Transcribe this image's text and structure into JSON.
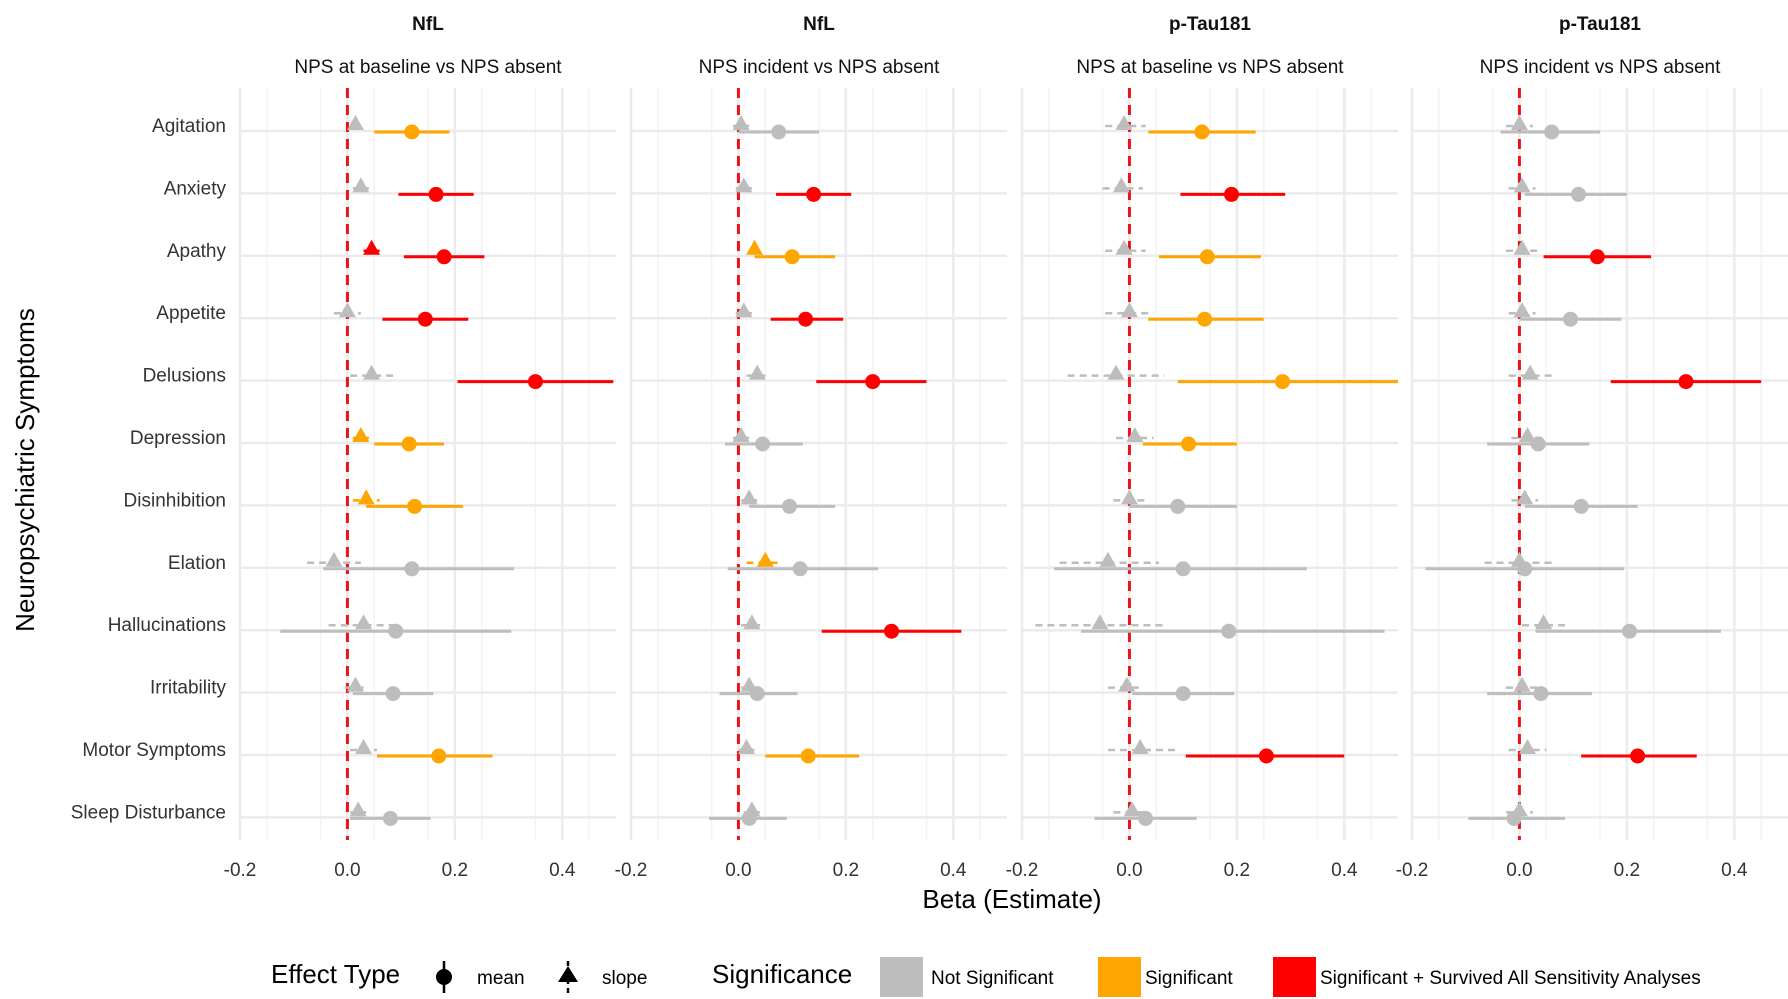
{
  "chart_data": {
    "type": "forest",
    "ylabel": "Neuropsychiatric Symptoms",
    "xlabel": "Beta (Estimate)",
    "xlim": [
      -0.2,
      0.5
    ],
    "xticks": [
      -0.2,
      0.0,
      0.2,
      0.4
    ],
    "xtick_labels": [
      "-0.2",
      "0.0",
      "0.2",
      "0.4"
    ],
    "reference_line": 0,
    "categories": [
      "Agitation",
      "Anxiety",
      "Apathy",
      "Appetite",
      "Delusions",
      "Depression",
      "Disinhibition",
      "Elation",
      "Hallucinations",
      "Irritability",
      "Motor Symptoms",
      "Sleep Disturbance"
    ],
    "panels": [
      {
        "title": "NfL",
        "subtitle": "NPS at baseline vs NPS absent",
        "mean": [
          {
            "est": 0.12,
            "lo": 0.05,
            "hi": 0.19,
            "sig": "significant"
          },
          {
            "est": 0.165,
            "lo": 0.095,
            "hi": 0.235,
            "sig": "survived"
          },
          {
            "est": 0.18,
            "lo": 0.105,
            "hi": 0.255,
            "sig": "survived"
          },
          {
            "est": 0.145,
            "lo": 0.065,
            "hi": 0.225,
            "sig": "survived"
          },
          {
            "est": 0.35,
            "lo": 0.205,
            "hi": 0.495,
            "sig": "survived"
          },
          {
            "est": 0.115,
            "lo": 0.05,
            "hi": 0.18,
            "sig": "significant"
          },
          {
            "est": 0.125,
            "lo": 0.035,
            "hi": 0.215,
            "sig": "significant"
          },
          {
            "est": 0.12,
            "lo": -0.045,
            "hi": 0.31,
            "sig": "none"
          },
          {
            "est": 0.09,
            "lo": -0.125,
            "hi": 0.305,
            "sig": "none"
          },
          {
            "est": 0.085,
            "lo": 0.01,
            "hi": 0.16,
            "sig": "none"
          },
          {
            "est": 0.17,
            "lo": 0.055,
            "hi": 0.27,
            "sig": "significant"
          },
          {
            "est": 0.08,
            "lo": 0.005,
            "hi": 0.155,
            "sig": "none"
          }
        ],
        "slope": [
          {
            "est": 0.015,
            "lo": 0.005,
            "hi": 0.025,
            "sig": "none"
          },
          {
            "est": 0.025,
            "lo": 0.01,
            "hi": 0.04,
            "sig": "none"
          },
          {
            "est": 0.045,
            "lo": 0.03,
            "hi": 0.06,
            "sig": "survived"
          },
          {
            "est": 0.0,
            "lo": -0.025,
            "hi": 0.025,
            "sig": "none"
          },
          {
            "est": 0.045,
            "lo": 0.005,
            "hi": 0.09,
            "sig": "none"
          },
          {
            "est": 0.025,
            "lo": 0.01,
            "hi": 0.04,
            "sig": "significant"
          },
          {
            "est": 0.035,
            "lo": 0.01,
            "hi": 0.06,
            "sig": "significant"
          },
          {
            "est": -0.025,
            "lo": -0.075,
            "hi": 0.025,
            "sig": "none"
          },
          {
            "est": 0.03,
            "lo": -0.035,
            "hi": 0.095,
            "sig": "none"
          },
          {
            "est": 0.015,
            "lo": -0.005,
            "hi": 0.035,
            "sig": "none"
          },
          {
            "est": 0.03,
            "lo": 0.005,
            "hi": 0.055,
            "sig": "none"
          },
          {
            "est": 0.02,
            "lo": 0.005,
            "hi": 0.035,
            "sig": "none"
          }
        ]
      },
      {
        "title": "NfL",
        "subtitle": "NPS incident vs NPS absent",
        "mean": [
          {
            "est": 0.075,
            "lo": 0.0,
            "hi": 0.15,
            "sig": "none"
          },
          {
            "est": 0.14,
            "lo": 0.07,
            "hi": 0.21,
            "sig": "survived"
          },
          {
            "est": 0.1,
            "lo": 0.03,
            "hi": 0.18,
            "sig": "significant"
          },
          {
            "est": 0.125,
            "lo": 0.06,
            "hi": 0.195,
            "sig": "survived"
          },
          {
            "est": 0.25,
            "lo": 0.145,
            "hi": 0.35,
            "sig": "survived"
          },
          {
            "est": 0.045,
            "lo": -0.025,
            "hi": 0.12,
            "sig": "none"
          },
          {
            "est": 0.095,
            "lo": 0.02,
            "hi": 0.18,
            "sig": "none"
          },
          {
            "est": 0.115,
            "lo": -0.02,
            "hi": 0.26,
            "sig": "none"
          },
          {
            "est": 0.285,
            "lo": 0.155,
            "hi": 0.415,
            "sig": "survived"
          },
          {
            "est": 0.035,
            "lo": -0.035,
            "hi": 0.11,
            "sig": "none"
          },
          {
            "est": 0.13,
            "lo": 0.05,
            "hi": 0.225,
            "sig": "significant"
          },
          {
            "est": 0.02,
            "lo": -0.055,
            "hi": 0.09,
            "sig": "none"
          }
        ],
        "slope": [
          {
            "est": 0.005,
            "lo": -0.01,
            "hi": 0.02,
            "sig": "none"
          },
          {
            "est": 0.01,
            "lo": -0.005,
            "hi": 0.025,
            "sig": "none"
          },
          {
            "est": 0.03,
            "lo": 0.02,
            "hi": 0.04,
            "sig": "significant"
          },
          {
            "est": 0.01,
            "lo": -0.005,
            "hi": 0.025,
            "sig": "none"
          },
          {
            "est": 0.035,
            "lo": 0.015,
            "hi": 0.055,
            "sig": "none"
          },
          {
            "est": 0.005,
            "lo": -0.01,
            "hi": 0.02,
            "sig": "none"
          },
          {
            "est": 0.02,
            "lo": 0.005,
            "hi": 0.035,
            "sig": "none"
          },
          {
            "est": 0.05,
            "lo": 0.015,
            "hi": 0.08,
            "sig": "significant"
          },
          {
            "est": 0.025,
            "lo": 0.005,
            "hi": 0.045,
            "sig": "none"
          },
          {
            "est": 0.02,
            "lo": 0.005,
            "hi": 0.035,
            "sig": "none"
          },
          {
            "est": 0.015,
            "lo": 0.0,
            "hi": 0.03,
            "sig": "none"
          },
          {
            "est": 0.025,
            "lo": 0.01,
            "hi": 0.04,
            "sig": "none"
          }
        ]
      },
      {
        "title": "p-Tau181",
        "subtitle": "NPS at baseline vs NPS absent",
        "mean": [
          {
            "est": 0.135,
            "lo": 0.035,
            "hi": 0.235,
            "sig": "significant"
          },
          {
            "est": 0.19,
            "lo": 0.095,
            "hi": 0.29,
            "sig": "survived"
          },
          {
            "est": 0.145,
            "lo": 0.055,
            "hi": 0.245,
            "sig": "significant"
          },
          {
            "est": 0.14,
            "lo": 0.035,
            "hi": 0.25,
            "sig": "significant"
          },
          {
            "est": 0.285,
            "lo": 0.09,
            "hi": 0.5,
            "sig": "significant"
          },
          {
            "est": 0.11,
            "lo": 0.025,
            "hi": 0.2,
            "sig": "significant"
          },
          {
            "est": 0.09,
            "lo": 0.0,
            "hi": 0.2,
            "sig": "none"
          },
          {
            "est": 0.1,
            "lo": -0.14,
            "hi": 0.33,
            "sig": "none"
          },
          {
            "est": 0.185,
            "lo": -0.09,
            "hi": 0.475,
            "sig": "none"
          },
          {
            "est": 0.1,
            "lo": 0.005,
            "hi": 0.195,
            "sig": "none"
          },
          {
            "est": 0.255,
            "lo": 0.105,
            "hi": 0.4,
            "sig": "survived"
          },
          {
            "est": 0.03,
            "lo": -0.065,
            "hi": 0.125,
            "sig": "none"
          }
        ],
        "slope": [
          {
            "est": -0.01,
            "lo": -0.045,
            "hi": 0.03,
            "sig": "none"
          },
          {
            "est": -0.015,
            "lo": -0.05,
            "hi": 0.025,
            "sig": "none"
          },
          {
            "est": -0.01,
            "lo": -0.045,
            "hi": 0.03,
            "sig": "none"
          },
          {
            "est": 0.0,
            "lo": -0.045,
            "hi": 0.045,
            "sig": "none"
          },
          {
            "est": -0.025,
            "lo": -0.115,
            "hi": 0.065,
            "sig": "none"
          },
          {
            "est": 0.01,
            "lo": -0.025,
            "hi": 0.045,
            "sig": "none"
          },
          {
            "est": 0.0,
            "lo": -0.03,
            "hi": 0.035,
            "sig": "none"
          },
          {
            "est": -0.04,
            "lo": -0.13,
            "hi": 0.055,
            "sig": "none"
          },
          {
            "est": -0.055,
            "lo": -0.175,
            "hi": 0.065,
            "sig": "none"
          },
          {
            "est": -0.005,
            "lo": -0.04,
            "hi": 0.025,
            "sig": "none"
          },
          {
            "est": 0.02,
            "lo": -0.04,
            "hi": 0.085,
            "sig": "none"
          },
          {
            "est": 0.005,
            "lo": -0.03,
            "hi": 0.035,
            "sig": "none"
          }
        ]
      },
      {
        "title": "p-Tau181",
        "subtitle": "NPS incident vs NPS absent",
        "mean": [
          {
            "est": 0.06,
            "lo": -0.035,
            "hi": 0.15,
            "sig": "none"
          },
          {
            "est": 0.11,
            "lo": 0.01,
            "hi": 0.2,
            "sig": "none"
          },
          {
            "est": 0.145,
            "lo": 0.045,
            "hi": 0.245,
            "sig": "survived"
          },
          {
            "est": 0.095,
            "lo": 0.0,
            "hi": 0.19,
            "sig": "none"
          },
          {
            "est": 0.31,
            "lo": 0.17,
            "hi": 0.45,
            "sig": "survived"
          },
          {
            "est": 0.035,
            "lo": -0.06,
            "hi": 0.13,
            "sig": "none"
          },
          {
            "est": 0.115,
            "lo": 0.01,
            "hi": 0.22,
            "sig": "none"
          },
          {
            "est": 0.01,
            "lo": -0.175,
            "hi": 0.195,
            "sig": "none"
          },
          {
            "est": 0.205,
            "lo": 0.03,
            "hi": 0.375,
            "sig": "none"
          },
          {
            "est": 0.04,
            "lo": -0.06,
            "hi": 0.135,
            "sig": "none"
          },
          {
            "est": 0.22,
            "lo": 0.115,
            "hi": 0.33,
            "sig": "survived"
          },
          {
            "est": -0.01,
            "lo": -0.095,
            "hi": 0.085,
            "sig": "none"
          }
        ],
        "slope": [
          {
            "est": 0.0,
            "lo": -0.025,
            "hi": 0.025,
            "sig": "none"
          },
          {
            "est": 0.005,
            "lo": -0.02,
            "hi": 0.03,
            "sig": "none"
          },
          {
            "est": 0.005,
            "lo": -0.025,
            "hi": 0.035,
            "sig": "none"
          },
          {
            "est": 0.005,
            "lo": -0.02,
            "hi": 0.03,
            "sig": "none"
          },
          {
            "est": 0.02,
            "lo": -0.02,
            "hi": 0.06,
            "sig": "none"
          },
          {
            "est": 0.015,
            "lo": -0.015,
            "hi": 0.045,
            "sig": "none"
          },
          {
            "est": 0.01,
            "lo": -0.015,
            "hi": 0.035,
            "sig": "none"
          },
          {
            "est": 0.0,
            "lo": -0.065,
            "hi": 0.065,
            "sig": "none"
          },
          {
            "est": 0.045,
            "lo": 0.005,
            "hi": 0.085,
            "sig": "none"
          },
          {
            "est": 0.005,
            "lo": -0.025,
            "hi": 0.035,
            "sig": "none"
          },
          {
            "est": 0.015,
            "lo": -0.02,
            "hi": 0.05,
            "sig": "none"
          },
          {
            "est": 0.0,
            "lo": -0.025,
            "hi": 0.025,
            "sig": "none"
          }
        ]
      }
    ],
    "legend": {
      "placement": "bottom",
      "effect_title": "Effect Type",
      "effect_items": [
        "mean",
        "slope"
      ],
      "sig_title": "Significance",
      "sig_items": [
        {
          "key": "none",
          "label": "Not Significant",
          "color": "#bdbdbd"
        },
        {
          "key": "significant",
          "label": "Significant",
          "color": "#ffa500"
        },
        {
          "key": "survived",
          "label": "Significant + Survived All Sensitivity Analyses",
          "color": "#ff0000"
        }
      ]
    },
    "colors": {
      "reference_line": "#e8141b",
      "grid": "#ebebeb"
    }
  }
}
